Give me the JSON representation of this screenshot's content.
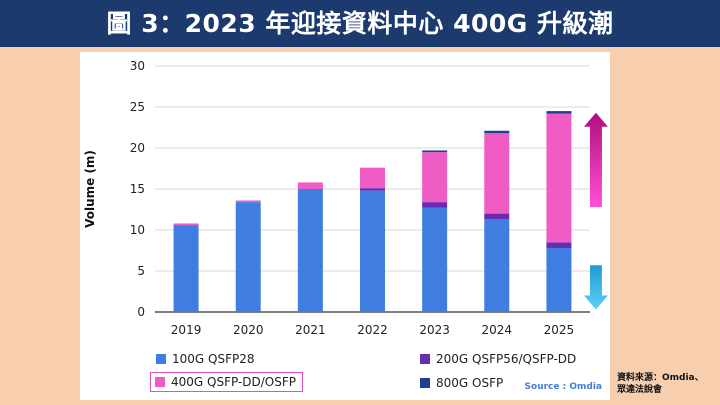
{
  "title": "圖 3：2023 年迎接資料中心 400G 升級潮",
  "citation_line1": "資料來源：Omdia、",
  "citation_line2": "眾達法說會",
  "chart_data": {
    "type": "bar",
    "stacked": true,
    "title": "",
    "xlabel": "",
    "ylabel": "Volume (m)",
    "ylim": [
      0,
      30
    ],
    "yticks": [
      0,
      5,
      10,
      15,
      20,
      25,
      30
    ],
    "categories": [
      "2019",
      "2020",
      "2021",
      "2022",
      "2023",
      "2024",
      "2025"
    ],
    "series": [
      {
        "name": "100G QSFP28",
        "color": "#3f7de0",
        "values": [
          10.6,
          13.4,
          15.0,
          14.8,
          12.7,
          11.3,
          7.8
        ]
      },
      {
        "name": "200G QSFP56/QSFP-DD",
        "color": "#6a2bb3",
        "values": [
          0.0,
          0.0,
          0.0,
          0.3,
          0.7,
          0.7,
          0.7
        ]
      },
      {
        "name": "400G QSFP-DD/OSFP",
        "color": "#ee5cc4",
        "values": [
          0.2,
          0.2,
          0.8,
          2.5,
          6.1,
          9.8,
          15.7
        ]
      },
      {
        "name": "800G OSFP",
        "color": "#1f3f8f",
        "values": [
          0.0,
          0.0,
          0.0,
          0.0,
          0.2,
          0.3,
          0.3
        ]
      }
    ],
    "legend_position": "bottom",
    "source": "Source : Omdia"
  }
}
